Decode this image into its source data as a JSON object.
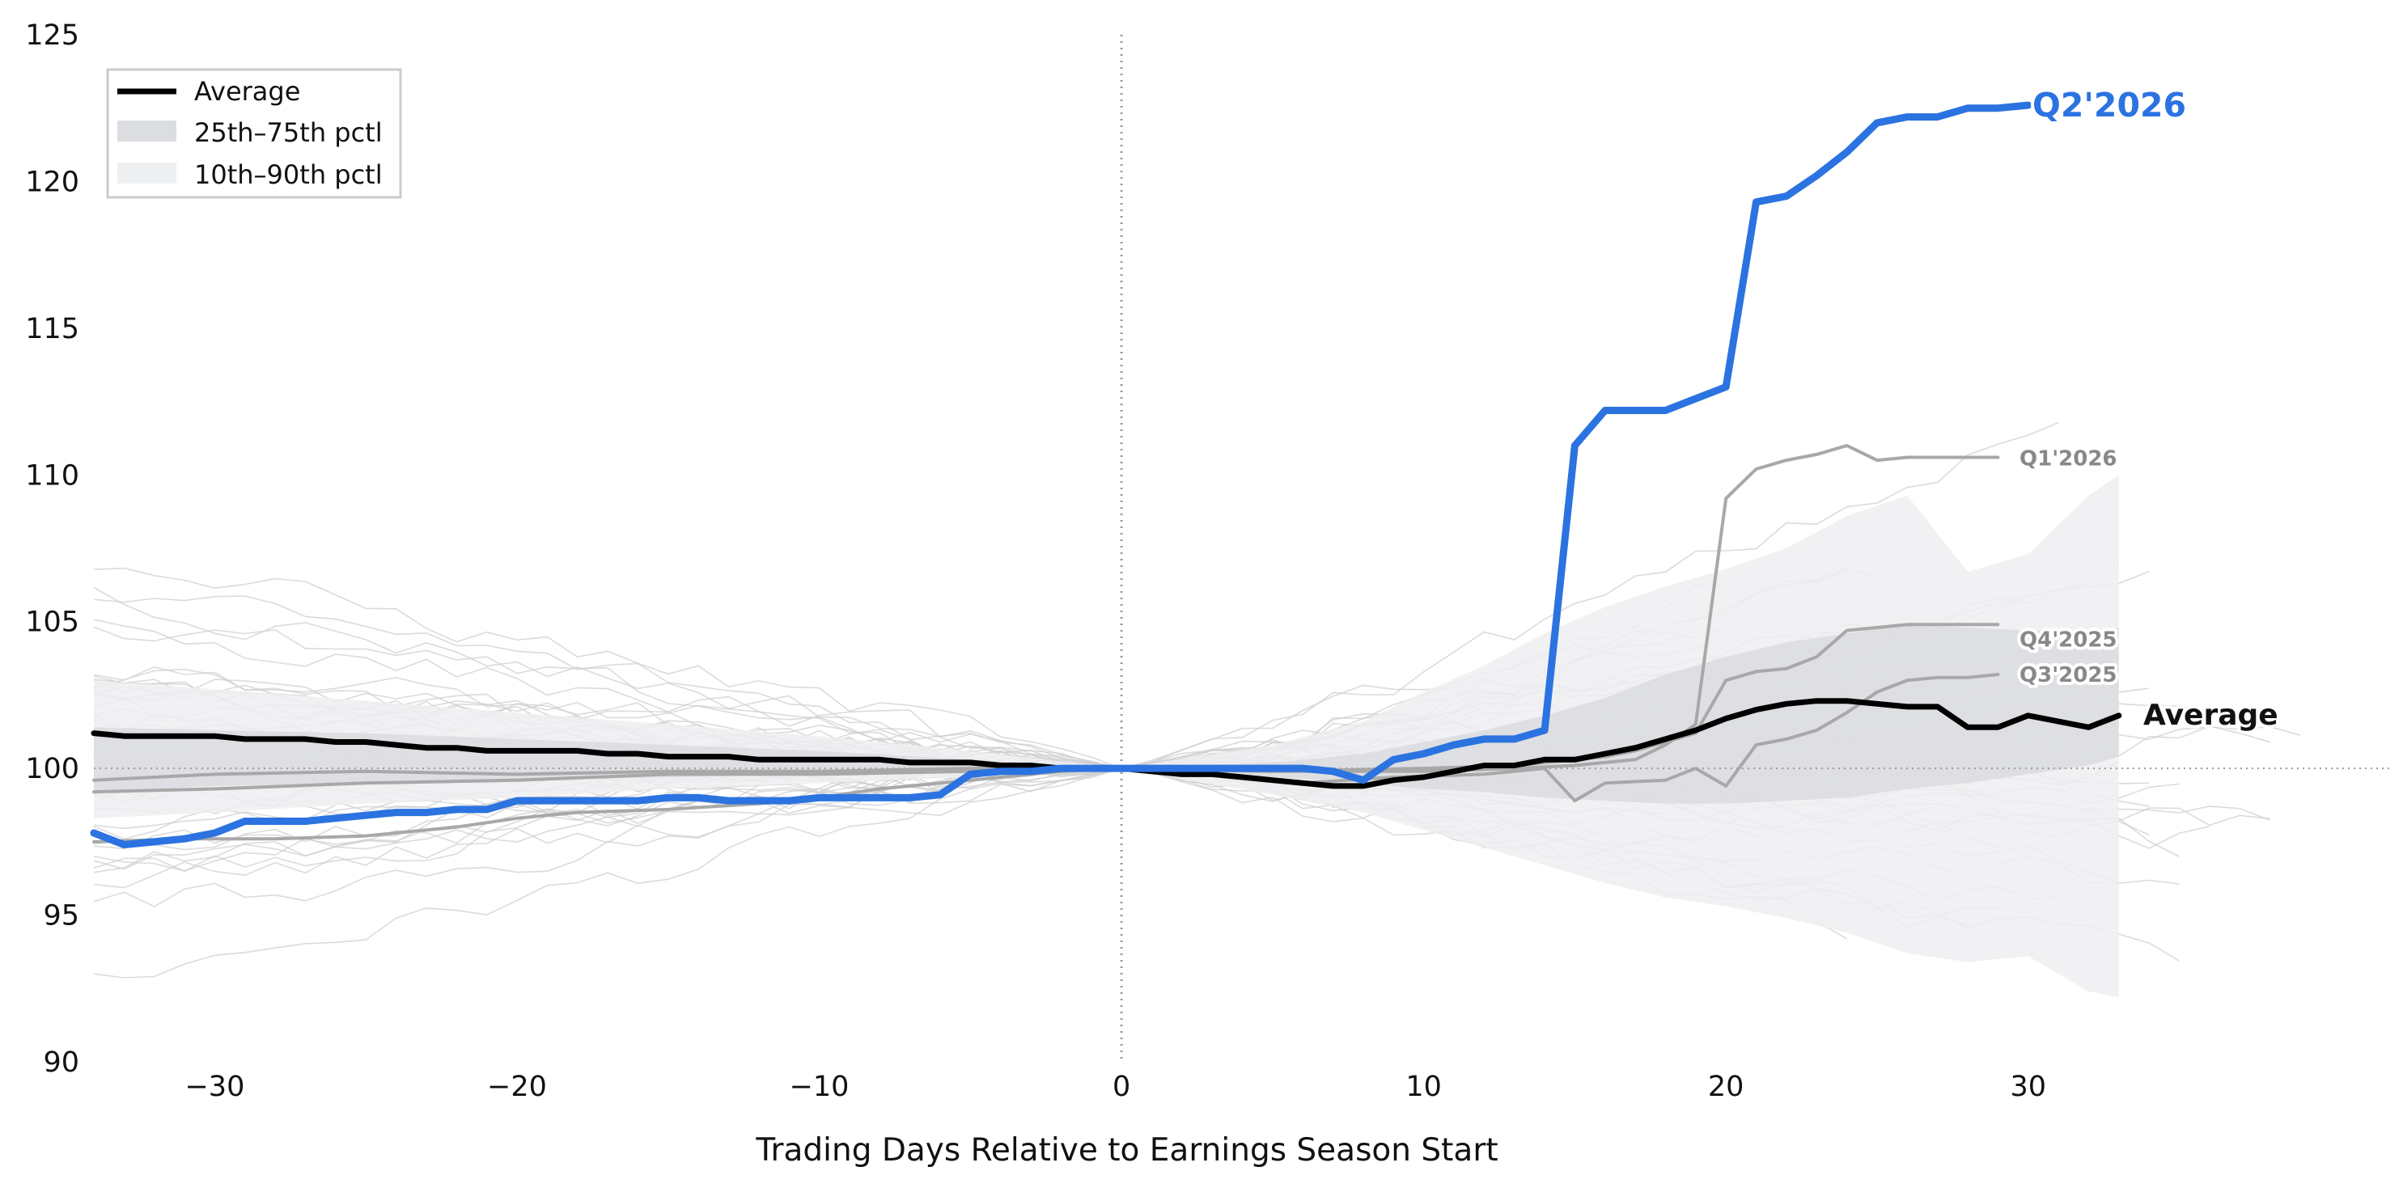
{
  "chart_data": {
    "type": "line",
    "title": "",
    "xlabel": "Trading Days Relative to Earnings Season Start",
    "ylabel": "",
    "xlim": [
      -34,
      42
    ],
    "ylim": [
      90,
      125
    ],
    "x_ticks": [
      -30,
      -20,
      -10,
      0,
      10,
      20,
      30
    ],
    "x_tick_labels": [
      "−30",
      "−20",
      "−10",
      "0",
      "10",
      "20",
      "30"
    ],
    "y_ticks": [
      90,
      95,
      100,
      105,
      110,
      115,
      120,
      125
    ],
    "reference_lines": {
      "horizontal_y": 100,
      "vertical_x": 0,
      "style": "dotted"
    },
    "grid": false,
    "legend": {
      "placement": "top-left",
      "entries": [
        "Average",
        "25th–75th pctl",
        "10th–90th pctl"
      ]
    },
    "colors": {
      "highlight": "#2b73e0",
      "average": "#000000",
      "past_quarters": "#a8a8a8",
      "history": "#cfcfcf",
      "band_inner": "#dcdde1",
      "band_outer": "#eeeff1"
    },
    "series": [
      {
        "name": "Q2'2026",
        "x": [
          -34,
          -33,
          -32,
          -31,
          -30,
          -29,
          -28,
          -27,
          -26,
          -25,
          -24,
          -23,
          -22,
          -21,
          -20,
          -19,
          -18,
          -17,
          -16,
          -15,
          -14,
          -13,
          -12,
          -11,
          -10,
          -9,
          -8,
          -7,
          -6,
          -5,
          -4,
          -3,
          -2,
          -1,
          0,
          1,
          2,
          3,
          4,
          5,
          6,
          7,
          8,
          9,
          10,
          11,
          12,
          13,
          14,
          15,
          16,
          17,
          18,
          19,
          20,
          21,
          22,
          23,
          24,
          25,
          26,
          27,
          28,
          29,
          30
        ],
        "y": [
          97.8,
          97.4,
          97.5,
          97.6,
          97.8,
          98.2,
          98.2,
          98.2,
          98.3,
          98.4,
          98.5,
          98.5,
          98.6,
          98.6,
          98.9,
          98.9,
          98.9,
          98.9,
          98.9,
          99.0,
          99.0,
          98.9,
          98.9,
          98.9,
          99.0,
          99.0,
          99.0,
          99.0,
          99.1,
          99.8,
          99.9,
          99.9,
          100.0,
          100.0,
          100.0,
          100.0,
          100.0,
          100.0,
          100.0,
          100.0,
          100.0,
          99.9,
          99.6,
          100.3,
          100.5,
          100.8,
          101.0,
          101.0,
          101.3,
          111.0,
          112.2,
          112.2,
          112.2,
          112.6,
          113.0,
          119.3,
          119.5,
          120.2,
          121.0,
          122.0,
          122.2,
          122.2,
          122.5,
          122.5,
          122.6
        ]
      },
      {
        "name": "Average",
        "x": [
          -34,
          -33,
          -32,
          -31,
          -30,
          -29,
          -28,
          -27,
          -26,
          -25,
          -24,
          -23,
          -22,
          -21,
          -20,
          -19,
          -18,
          -17,
          -16,
          -15,
          -14,
          -13,
          -12,
          -11,
          -10,
          -9,
          -8,
          -7,
          -6,
          -5,
          -4,
          -3,
          -2,
          -1,
          0,
          1,
          2,
          3,
          4,
          5,
          6,
          7,
          8,
          9,
          10,
          11,
          12,
          13,
          14,
          15,
          16,
          17,
          18,
          19,
          20,
          21,
          22,
          23,
          24,
          25,
          26,
          27,
          28,
          29,
          30,
          31,
          32,
          33
        ],
        "y": [
          101.2,
          101.1,
          101.1,
          101.1,
          101.1,
          101.0,
          101.0,
          101.0,
          100.9,
          100.9,
          100.8,
          100.7,
          100.7,
          100.6,
          100.6,
          100.6,
          100.6,
          100.5,
          100.5,
          100.4,
          100.4,
          100.4,
          100.3,
          100.3,
          100.3,
          100.3,
          100.3,
          100.2,
          100.2,
          100.2,
          100.1,
          100.1,
          100.0,
          100.0,
          100.0,
          99.9,
          99.8,
          99.8,
          99.7,
          99.6,
          99.5,
          99.4,
          99.4,
          99.6,
          99.7,
          99.9,
          100.1,
          100.1,
          100.3,
          100.3,
          100.5,
          100.7,
          101.0,
          101.3,
          101.7,
          102.0,
          102.2,
          102.3,
          102.3,
          102.2,
          102.1,
          102.1,
          101.4,
          101.4,
          101.8,
          101.6,
          101.4,
          101.8
        ]
      },
      {
        "name": "Q1'2026",
        "x": [
          -34,
          -30,
          -25,
          -20,
          -15,
          -10,
          -5,
          0,
          5,
          10,
          13,
          15,
          16,
          17,
          18,
          19,
          20,
          21,
          22,
          23,
          24,
          25,
          26,
          27,
          28,
          29
        ],
        "y": [
          99.6,
          99.8,
          99.9,
          99.8,
          99.9,
          99.9,
          100.0,
          100.0,
          99.9,
          99.9,
          100.0,
          100.1,
          100.2,
          100.3,
          100.8,
          101.5,
          109.2,
          110.2,
          110.5,
          110.7,
          111.0,
          110.5,
          110.6,
          110.6,
          110.6,
          110.6
        ]
      },
      {
        "name": "Q4'2025",
        "x": [
          -34,
          -30,
          -25,
          -20,
          -15,
          -10,
          -5,
          0,
          5,
          10,
          13,
          15,
          16,
          17,
          18,
          19,
          20,
          21,
          22,
          23,
          24,
          25,
          26,
          27,
          28,
          29
        ],
        "y": [
          99.2,
          99.3,
          99.5,
          99.6,
          99.8,
          99.8,
          99.9,
          100.0,
          99.9,
          100.0,
          100.1,
          100.3,
          100.4,
          100.6,
          100.9,
          101.2,
          103.0,
          103.3,
          103.4,
          103.8,
          104.7,
          104.8,
          104.9,
          104.9,
          104.9,
          104.9
        ]
      },
      {
        "name": "Q3'2025",
        "x": [
          -34,
          -31,
          -28,
          -25,
          -22,
          -20,
          -18,
          -15,
          -12,
          -10,
          -8,
          -5,
          -2,
          0,
          3,
          6,
          9,
          12,
          14,
          15,
          16,
          18,
          19,
          20,
          21,
          22,
          23,
          24,
          25,
          26,
          27,
          28,
          29
        ],
        "y": [
          97.5,
          97.6,
          97.6,
          97.7,
          98.0,
          98.3,
          98.5,
          98.6,
          98.8,
          99.0,
          99.3,
          99.6,
          99.9,
          100.0,
          99.8,
          99.5,
          99.7,
          99.8,
          100.0,
          98.9,
          99.5,
          99.6,
          100.0,
          99.4,
          100.8,
          101.0,
          101.3,
          101.9,
          102.6,
          103.0,
          103.1,
          103.1,
          103.2
        ]
      }
    ],
    "series_labels": {
      "highlight": "Q2'2026",
      "average": "Average",
      "q1": "Q1'2026",
      "q4": "Q4'2025",
      "q3": "Q3'2025"
    },
    "bands": {
      "x": [
        -34,
        -30,
        -25,
        -20,
        -15,
        -10,
        -5,
        0,
        5,
        8,
        10,
        12,
        14,
        16,
        18,
        20,
        22,
        24,
        26,
        28,
        30,
        32,
        33
      ],
      "p25": [
        99.2,
        99.4,
        99.5,
        99.6,
        99.7,
        99.8,
        99.9,
        100.0,
        99.7,
        99.5,
        99.3,
        99.2,
        99.0,
        98.9,
        98.8,
        98.8,
        98.9,
        99.0,
        99.3,
        99.5,
        99.8,
        100.1,
        100.4
      ],
      "p75": [
        101.4,
        101.3,
        101.2,
        101.0,
        100.8,
        100.6,
        100.3,
        100.0,
        100.2,
        100.5,
        100.9,
        101.3,
        101.8,
        102.4,
        103.2,
        103.8,
        104.3,
        104.6,
        104.9,
        104.8,
        104.7,
        104.7,
        104.8
      ],
      "p10": [
        98.3,
        98.5,
        98.8,
        99.0,
        99.3,
        99.5,
        99.7,
        100.0,
        99.1,
        98.5,
        97.9,
        97.3,
        96.7,
        96.1,
        95.6,
        95.3,
        94.9,
        94.4,
        93.7,
        93.4,
        93.6,
        92.4,
        92.2
      ],
      "p90": [
        103.0,
        102.7,
        102.3,
        101.9,
        101.5,
        101.1,
        100.6,
        100.0,
        100.8,
        101.6,
        102.6,
        103.5,
        104.6,
        105.5,
        106.2,
        106.8,
        107.5,
        108.6,
        109.3,
        106.7,
        107.3,
        109.3,
        110.0
      ]
    }
  }
}
